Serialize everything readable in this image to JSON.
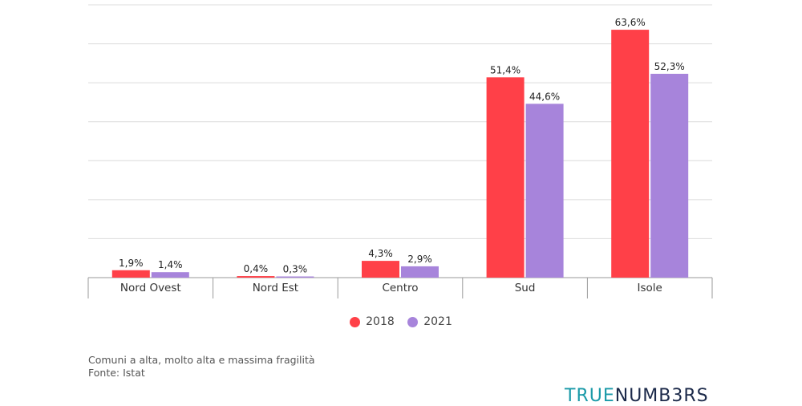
{
  "chart_data": {
    "type": "bar",
    "categories": [
      "Nord Ovest",
      "Nord Est",
      "Centro",
      "Sud",
      "Isole"
    ],
    "series": [
      {
        "name": "2018",
        "color": "#ff4048",
        "values": [
          1.9,
          0.4,
          4.3,
          51.4,
          63.6
        ],
        "labels": [
          "1,9%",
          "0,4%",
          "4,3%",
          "51,4%",
          "63,6%"
        ]
      },
      {
        "name": "2021",
        "color": "#a784db",
        "values": [
          1.4,
          0.3,
          2.9,
          44.6,
          52.3
        ],
        "labels": [
          "1,4%",
          "0,3%",
          "2,9%",
          "44,6%",
          "52,3%"
        ]
      }
    ],
    "ylim": [
      0,
      70
    ],
    "grid": true,
    "legend_position": "bottom-center"
  },
  "caption": {
    "line1": "Comuni a alta, molto alta e massima fragilità",
    "line2": "Fonte: Istat"
  },
  "logo": {
    "part1": "TRUE",
    "part2": "NUMB3RS"
  }
}
